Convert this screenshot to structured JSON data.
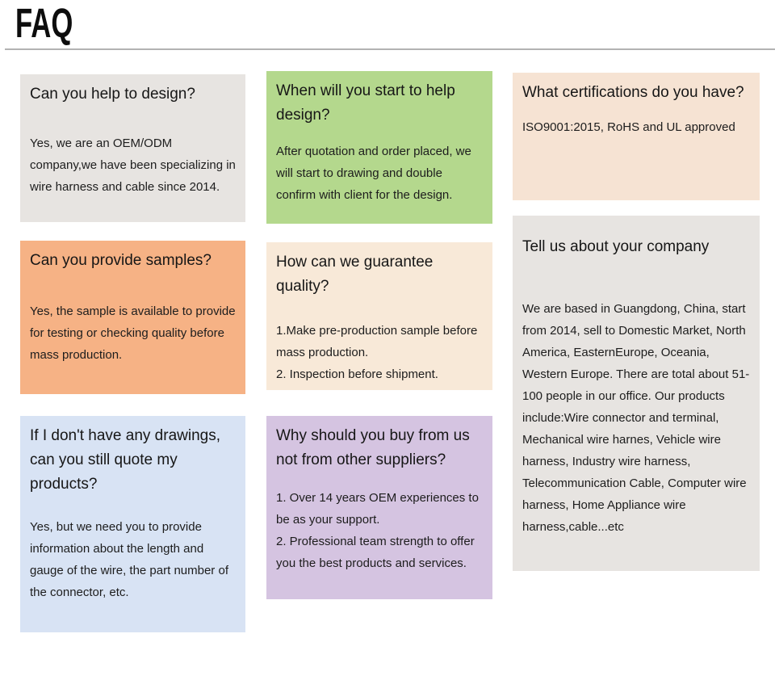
{
  "page": {
    "title": "FAQ"
  },
  "colors": {
    "divider": "#b3b3b3",
    "text": "#1d1d1d"
  },
  "cards": [
    {
      "id": "design-help",
      "bg": "#e7e4e1",
      "question": "Can you help to design?",
      "answer": [
        "Yes, we are an OEM/ODM company,we have been specializing in wire harness and cable since 2014."
      ]
    },
    {
      "id": "when-start",
      "bg": "#b4d88d",
      "question": "When will you start to help design?",
      "answer": [
        "After quotation and order placed, we will start to drawing and double confirm with client for the design."
      ]
    },
    {
      "id": "certifications",
      "bg": "#f6e3d3",
      "question": "What certifications do you have?",
      "answer": [
        "ISO9001:2015, RoHS and UL approved"
      ]
    },
    {
      "id": "samples",
      "bg": "#f6b285",
      "question": "Can you provide samples?",
      "answer": [
        "Yes, the sample is available to provide for testing or checking quality before mass production."
      ]
    },
    {
      "id": "quality",
      "bg": "#f8e9d8",
      "question": "How can we guarantee quality?",
      "answer": [
        "1.Make pre-production sample before mass production.",
        "2. Inspection before shipment."
      ]
    },
    {
      "id": "company",
      "bg": "#e7e4e1",
      "question": "Tell us about your company",
      "answer": [
        "We are based in Guangdong, China, start from 2014, sell to Domestic Market, North America, EasternEurope, Oceania, Western Europe. There are total about 51-100 people in our office. Our products include:Wire connector and terminal, Mechanical wire harnes, Vehicle wire harness, Industry wire harness, Telecommunication Cable, Computer wire harness, Home Appliance wire harness,cable...etc"
      ]
    },
    {
      "id": "no-drawings",
      "bg": "#d8e3f4",
      "question": "If I don't have any drawings, can you still quote my products?",
      "answer": [
        "Yes, but we need you to provide information about the length and gauge of the wire, the part number of the connector, etc."
      ]
    },
    {
      "id": "why-us",
      "bg": "#d5c4e1",
      "question": "Why should you buy from us not from other suppliers?",
      "answer": [
        "1. Over 14 years OEM experiences to be as your support.",
        "2. Professional team strength to offer you the best products and services."
      ]
    }
  ]
}
